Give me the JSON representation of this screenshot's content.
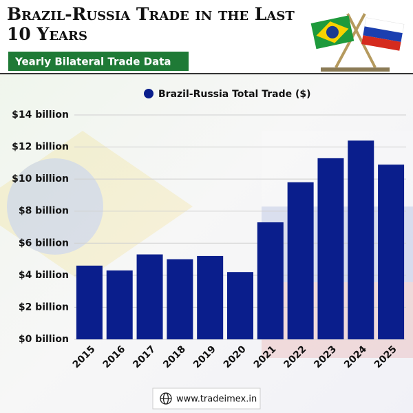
{
  "chart_data": {
    "type": "bar",
    "title": "Brazil-Russia Trade in the Last 10 Years",
    "subtitle": "Yearly Bilateral Trade Data",
    "categories": [
      "2015",
      "2016",
      "2017",
      "2018",
      "2019",
      "2020",
      "2021",
      "2022",
      "2023",
      "2024",
      "2025"
    ],
    "series": [
      {
        "name": "Brazil-Russia Total Trade ($)",
        "color": "#0a1e8c",
        "values": [
          4.6,
          4.3,
          5.3,
          5.0,
          5.2,
          4.2,
          7.3,
          9.8,
          11.3,
          12.4,
          10.9
        ]
      }
    ],
    "ylim": [
      0,
      14
    ],
    "yticks": [
      {
        "value": 0,
        "label": "$0 billion"
      },
      {
        "value": 2,
        "label": "$2 billion"
      },
      {
        "value": 4,
        "label": "$4 billion"
      },
      {
        "value": 6,
        "label": "$6 billion"
      },
      {
        "value": 8,
        "label": "$8 billion"
      },
      {
        "value": 10,
        "label": "$10 billion"
      },
      {
        "value": 12,
        "label": "$12 billion"
      },
      {
        "value": 14,
        "label": "$14 billion"
      }
    ],
    "grid": true,
    "legend": "top",
    "footer": "www.tradeimex.in"
  }
}
